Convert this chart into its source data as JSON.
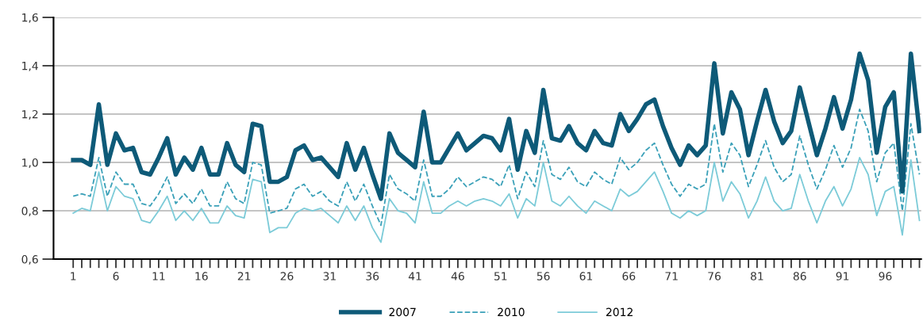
{
  "chart_data": {
    "type": "line",
    "x": [
      1,
      2,
      3,
      4,
      5,
      6,
      7,
      8,
      9,
      10,
      11,
      12,
      13,
      14,
      15,
      16,
      17,
      18,
      19,
      20,
      21,
      22,
      23,
      24,
      25,
      26,
      27,
      28,
      29,
      30,
      31,
      32,
      33,
      34,
      35,
      36,
      37,
      38,
      39,
      40,
      41,
      42,
      43,
      44,
      45,
      46,
      47,
      48,
      49,
      50,
      51,
      52,
      53,
      54,
      55,
      56,
      57,
      58,
      59,
      60,
      61,
      62,
      63,
      64,
      65,
      66,
      67,
      68,
      69,
      70,
      71,
      72,
      73,
      74,
      75,
      76,
      77,
      78,
      79,
      80,
      81,
      82,
      83,
      84,
      85,
      86,
      87,
      88,
      89,
      90,
      91,
      92,
      93,
      94,
      95,
      96,
      97,
      98,
      99,
      100
    ],
    "series": [
      {
        "name": "2007",
        "color": "#0e5a78",
        "line_style": "solid",
        "values": [
          1.01,
          1.01,
          0.99,
          1.24,
          0.99,
          1.12,
          1.05,
          1.06,
          0.96,
          0.95,
          1.02,
          1.1,
          0.95,
          1.02,
          0.97,
          1.06,
          0.95,
          0.95,
          1.08,
          0.99,
          0.96,
          1.16,
          1.15,
          0.92,
          0.92,
          0.94,
          1.05,
          1.07,
          1.01,
          1.02,
          0.98,
          0.94,
          1.08,
          0.97,
          1.06,
          0.95,
          0.85,
          1.12,
          1.04,
          1.01,
          0.98,
          1.21,
          1.0,
          1.0,
          1.06,
          1.12,
          1.05,
          1.08,
          1.11,
          1.1,
          1.05,
          1.18,
          0.97,
          1.13,
          1.04,
          1.3,
          1.1,
          1.09,
          1.15,
          1.08,
          1.05,
          1.13,
          1.08,
          1.07,
          1.2,
          1.13,
          1.18,
          1.24,
          1.26,
          1.15,
          1.06,
          0.99,
          1.07,
          1.03,
          1.07,
          1.41,
          1.12,
          1.29,
          1.22,
          1.03,
          1.17,
          1.3,
          1.17,
          1.08,
          1.13,
          1.31,
          1.17,
          1.03,
          1.14,
          1.27,
          1.14,
          1.26,
          1.45,
          1.34,
          1.04,
          1.23,
          1.29,
          0.88,
          1.45,
          1.13
        ]
      },
      {
        "name": "2010",
        "color": "#3aa0b8",
        "line_style": "dashed",
        "values": [
          0.86,
          0.87,
          0.86,
          1.02,
          0.86,
          0.96,
          0.91,
          0.91,
          0.83,
          0.82,
          0.87,
          0.94,
          0.83,
          0.87,
          0.83,
          0.89,
          0.82,
          0.82,
          0.92,
          0.85,
          0.83,
          1.0,
          0.99,
          0.79,
          0.8,
          0.81,
          0.89,
          0.91,
          0.86,
          0.88,
          0.84,
          0.82,
          0.92,
          0.84,
          0.91,
          0.82,
          0.74,
          0.95,
          0.89,
          0.87,
          0.84,
          1.01,
          0.86,
          0.86,
          0.89,
          0.94,
          0.9,
          0.92,
          0.94,
          0.93,
          0.9,
          0.99,
          0.85,
          0.96,
          0.9,
          1.09,
          0.95,
          0.93,
          0.98,
          0.92,
          0.9,
          0.96,
          0.93,
          0.91,
          1.02,
          0.97,
          1.0,
          1.05,
          1.08,
          0.99,
          0.91,
          0.86,
          0.91,
          0.89,
          0.91,
          1.16,
          0.96,
          1.08,
          1.03,
          0.9,
          0.99,
          1.09,
          0.98,
          0.92,
          0.95,
          1.11,
          0.99,
          0.89,
          0.97,
          1.07,
          0.98,
          1.06,
          1.22,
          1.13,
          0.92,
          1.04,
          1.08,
          0.8,
          1.16,
          0.95
        ]
      },
      {
        "name": "2012",
        "color": "#7ccbd8",
        "line_style": "solid",
        "values": [
          0.79,
          0.81,
          0.8,
          0.96,
          0.8,
          0.9,
          0.86,
          0.85,
          0.76,
          0.75,
          0.8,
          0.86,
          0.76,
          0.8,
          0.76,
          0.81,
          0.75,
          0.75,
          0.82,
          0.78,
          0.77,
          0.93,
          0.92,
          0.71,
          0.73,
          0.73,
          0.79,
          0.81,
          0.8,
          0.81,
          0.78,
          0.75,
          0.82,
          0.76,
          0.82,
          0.73,
          0.67,
          0.85,
          0.8,
          0.79,
          0.75,
          0.92,
          0.79,
          0.79,
          0.82,
          0.84,
          0.82,
          0.84,
          0.85,
          0.84,
          0.82,
          0.87,
          0.77,
          0.85,
          0.82,
          1.0,
          0.84,
          0.82,
          0.86,
          0.82,
          0.79,
          0.84,
          0.82,
          0.8,
          0.89,
          0.86,
          0.88,
          0.92,
          0.96,
          0.88,
          0.79,
          0.77,
          0.8,
          0.78,
          0.8,
          1.0,
          0.84,
          0.92,
          0.87,
          0.77,
          0.84,
          0.94,
          0.84,
          0.8,
          0.81,
          0.95,
          0.84,
          0.75,
          0.84,
          0.9,
          0.82,
          0.89,
          1.02,
          0.95,
          0.78,
          0.88,
          0.9,
          0.7,
          1.01,
          0.76
        ]
      }
    ],
    "xlim": [
      -1.3,
      100.2
    ],
    "xticks": [
      1,
      {
        "value": 2,
        "label": null
      },
      {
        "value": 3,
        "label": null
      },
      {
        "value": 4,
        "label": null
      },
      {
        "value": 5,
        "label": null
      },
      6,
      {
        "value": 7,
        "label": null
      },
      {
        "value": 8,
        "label": null
      },
      {
        "value": 9,
        "label": null
      },
      {
        "value": 10,
        "label": null
      },
      11,
      {
        "value": 12,
        "label": null
      },
      {
        "value": 13,
        "label": null
      },
      {
        "value": 14,
        "label": null
      },
      {
        "value": 15,
        "label": null
      },
      16,
      {
        "value": 17,
        "label": null
      },
      {
        "value": 18,
        "label": null
      },
      {
        "value": 19,
        "label": null
      },
      {
        "value": 20,
        "label": null
      },
      21,
      {
        "value": 22,
        "label": null
      },
      {
        "value": 23,
        "label": null
      },
      {
        "value": 24,
        "label": null
      },
      {
        "value": 25,
        "label": null
      },
      26,
      {
        "value": 27,
        "label": null
      },
      {
        "value": 28,
        "label": null
      },
      {
        "value": 29,
        "label": null
      },
      {
        "value": 30,
        "label": null
      },
      31,
      {
        "value": 32,
        "label": null
      },
      {
        "value": 33,
        "label": null
      },
      {
        "value": 34,
        "label": null
      },
      {
        "value": 35,
        "label": null
      },
      36,
      {
        "value": 37,
        "label": null
      },
      {
        "value": 38,
        "label": null
      },
      {
        "value": 39,
        "label": null
      },
      {
        "value": 40,
        "label": null
      },
      41,
      {
        "value": 42,
        "label": null
      },
      {
        "value": 43,
        "label": null
      },
      {
        "value": 44,
        "label": null
      },
      {
        "value": 45,
        "label": null
      },
      46,
      {
        "value": 47,
        "label": null
      },
      {
        "value": 48,
        "label": null
      },
      {
        "value": 49,
        "label": null
      },
      {
        "value": 50,
        "label": null
      },
      51,
      {
        "value": 52,
        "label": null
      },
      {
        "value": 53,
        "label": null
      },
      {
        "value": 54,
        "label": null
      },
      {
        "value": 55,
        "label": null
      },
      56,
      {
        "value": 57,
        "label": null
      },
      {
        "value": 58,
        "label": null
      },
      {
        "value": 59,
        "label": null
      },
      {
        "value": 60,
        "label": null
      },
      61,
      {
        "value": 62,
        "label": null
      },
      {
        "value": 63,
        "label": null
      },
      {
        "value": 64,
        "label": null
      },
      {
        "value": 65,
        "label": null
      },
      66,
      {
        "value": 67,
        "label": null
      },
      {
        "value": 68,
        "label": null
      },
      {
        "value": 69,
        "label": null
      },
      {
        "value": 70,
        "label": null
      },
      71,
      {
        "value": 72,
        "label": null
      },
      {
        "value": 73,
        "label": null
      },
      {
        "value": 74,
        "label": null
      },
      {
        "value": 75,
        "label": null
      },
      76,
      {
        "value": 77,
        "label": null
      },
      {
        "value": 78,
        "label": null
      },
      {
        "value": 79,
        "label": null
      },
      {
        "value": 80,
        "label": null
      },
      81,
      {
        "value": 82,
        "label": null
      },
      {
        "value": 83,
        "label": null
      },
      {
        "value": 84,
        "label": null
      },
      {
        "value": 85,
        "label": null
      },
      86,
      {
        "value": 87,
        "label": null
      },
      {
        "value": 88,
        "label": null
      },
      {
        "value": 89,
        "label": null
      },
      {
        "value": 90,
        "label": null
      },
      91,
      {
        "value": 92,
        "label": null
      },
      {
        "value": 93,
        "label": null
      },
      {
        "value": 94,
        "label": null
      },
      {
        "value": 95,
        "label": null
      },
      96,
      {
        "value": 97,
        "label": null
      },
      {
        "value": 98,
        "label": null
      },
      {
        "value": 99,
        "label": null
      },
      {
        "value": 100,
        "label": null
      }
    ],
    "ylim": [
      0.6,
      1.6
    ],
    "yticks": [
      {
        "value": 0.6,
        "label": "0,6"
      },
      {
        "value": 0.8,
        "label": "0,8"
      },
      {
        "value": 1.0,
        "label": "1,0"
      },
      {
        "value": 1.2,
        "label": "1,2"
      },
      {
        "value": 1.4,
        "label": "1,4"
      },
      {
        "value": 1.6,
        "label": "1,6"
      }
    ],
    "grid": "y",
    "legend": "bottom"
  }
}
